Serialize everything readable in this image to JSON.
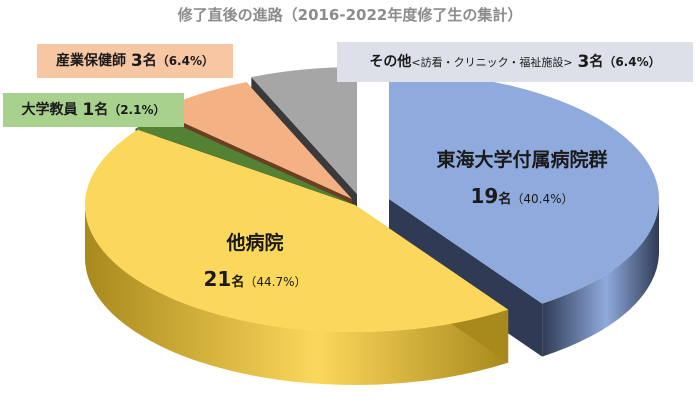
{
  "title": "修了直後の進路（2016-2022年度修了生の集計）",
  "chart_data": {
    "type": "pie",
    "title": "修了直後の進路（2016-2022年度修了生の集計）",
    "slices": [
      {
        "name": "東海大学付属病院群",
        "count": 19,
        "unit": "名",
        "percent": "（40.4%）",
        "value": 40.4,
        "color": "#8faadc",
        "side": "#2f3b55"
      },
      {
        "name": "他病院",
        "count": 21,
        "unit": "名",
        "percent": "（44.7%）",
        "value": 44.7,
        "color": "#fbd75b",
        "side": "#a8891c"
      },
      {
        "name": "大学教員",
        "count": 1,
        "unit": "名",
        "percent": "（2.1%）",
        "value": 2.1,
        "color": "#548235",
        "side": "#1e3412"
      },
      {
        "name": "産業保健師",
        "count": 3,
        "unit": "名",
        "percent": "（6.4%）",
        "value": 6.4,
        "color": "#f4b183",
        "side": "#6b3f22"
      },
      {
        "name": "その他",
        "detail": "<訪看・クリニック・福祉施設>",
        "count": 3,
        "unit": "名",
        "percent": "（6.4%）",
        "value": 6.4,
        "color": "#a6a6a6",
        "side": "#3a3a3a"
      }
    ],
    "legend": "none"
  }
}
